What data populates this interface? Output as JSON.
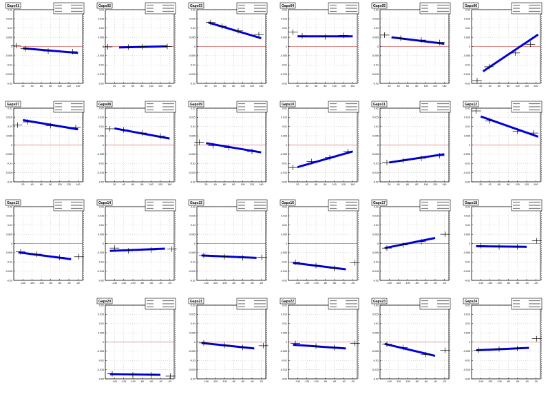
{
  "chart_data": [
    {
      "title": "Gaps01",
      "type": "scatter",
      "x_ticks": [
        "20",
        "40",
        "60",
        "80",
        "100",
        "120",
        "140"
      ],
      "y_ticks": [
        "0.02",
        "0.015",
        "0.01",
        "0.005",
        "0",
        "-0.005",
        "-0.01",
        "-0.015",
        "-0.02"
      ],
      "ylim": [
        -0.02,
        0.02
      ],
      "fit": {
        "x": [
          20,
          140
        ],
        "y": [
          -0.001,
          -0.0035
        ]
      },
      "points": [
        {
          "x": 5,
          "y": 0.0005
        },
        {
          "x": 25,
          "y": -0.0012
        },
        {
          "x": 75,
          "y": -0.0025
        },
        {
          "x": 128,
          "y": -0.0028
        }
      ]
    },
    {
      "title": "Gaps02",
      "type": "scatter",
      "x_ticks": [
        "20",
        "40",
        "60",
        "80",
        "100",
        "120",
        "140"
      ],
      "y_ticks": [
        "0.02",
        "0.015",
        "0.01",
        "0.005",
        "0",
        "-0.005",
        "-0.01",
        "-0.015",
        "-0.02"
      ],
      "ylim": [
        -0.02,
        0.02
      ],
      "fit": {
        "x": [
          30,
          135
        ],
        "y": [
          -0.0005,
          0.0001
        ]
      },
      "points": [
        {
          "x": 5,
          "y": -0.0002
        },
        {
          "x": 50,
          "y": -0.0003
        },
        {
          "x": 80,
          "y": -0.0001
        },
        {
          "x": 135,
          "y": 0.0
        }
      ]
    },
    {
      "title": "Gaps03",
      "type": "scatter",
      "x_ticks": [
        "20",
        "40",
        "60",
        "80",
        "100",
        "120",
        "140"
      ],
      "y_ticks": [
        "0.02",
        "0.015",
        "0.01",
        "0.005",
        "0",
        "-0.005",
        "-0.01",
        "-0.015",
        "-0.02"
      ],
      "ylim": [
        -0.02,
        0.02
      ],
      "fit": {
        "x": [
          25,
          140
        ],
        "y": [
          0.013,
          0.0045
        ]
      },
      "points": [
        {
          "x": 30,
          "y": 0.013
        },
        {
          "x": 55,
          "y": 0.011
        },
        {
          "x": 90,
          "y": 0.0085
        },
        {
          "x": 135,
          "y": 0.0065
        }
      ]
    },
    {
      "title": "Gaps04",
      "type": "scatter",
      "x_ticks": [
        "20",
        "40",
        "60",
        "80",
        "100",
        "120",
        "140"
      ],
      "y_ticks": [
        "0.02",
        "0.015",
        "0.01",
        "0.005",
        "0",
        "-0.005",
        "-0.01",
        "-0.015",
        "-0.02"
      ],
      "ylim": [
        -0.02,
        0.02
      ],
      "fit": {
        "x": [
          20,
          140
        ],
        "y": [
          0.0055,
          0.0055
        ]
      },
      "points": [
        {
          "x": 10,
          "y": 0.0078
        },
        {
          "x": 30,
          "y": 0.0058
        },
        {
          "x": 80,
          "y": 0.0052
        },
        {
          "x": 120,
          "y": 0.006
        }
      ]
    },
    {
      "title": "Gaps05",
      "type": "scatter",
      "x_ticks": [
        "20",
        "40",
        "60",
        "80",
        "100",
        "120",
        "140"
      ],
      "y_ticks": [
        "0.02",
        "0.015",
        "0.01",
        "0.005",
        "0",
        "-0.005",
        "-0.01",
        "-0.015",
        "-0.02"
      ],
      "ylim": [
        -0.02,
        0.02
      ],
      "fit": {
        "x": [
          25,
          140
        ],
        "y": [
          0.005,
          0.0015
        ]
      },
      "points": [
        {
          "x": 10,
          "y": 0.0062
        },
        {
          "x": 45,
          "y": 0.0045
        },
        {
          "x": 90,
          "y": 0.0035
        },
        {
          "x": 130,
          "y": 0.0022
        }
      ]
    },
    {
      "title": "Gaps06",
      "type": "scatter",
      "x_ticks": [
        "20",
        "40",
        "60",
        "80",
        "100",
        "120",
        "140"
      ],
      "y_ticks": [
        "0.02",
        "0.015",
        "0.01",
        "0.005",
        "0",
        "-0.005",
        "-0.01",
        "-0.015",
        "-0.02"
      ],
      "ylim": [
        -0.02,
        0.02
      ],
      "fit": {
        "x": [
          25,
          145
        ],
        "y": [
          -0.0135,
          0.0065
        ]
      },
      "points": [
        {
          "x": 12,
          "y": -0.0185
        },
        {
          "x": 38,
          "y": -0.011
        },
        {
          "x": 95,
          "y": -0.0035
        },
        {
          "x": 128,
          "y": 0.0012
        }
      ]
    },
    {
      "title": "Gaps07",
      "type": "scatter",
      "x_ticks": [
        "20",
        "40",
        "60",
        "80",
        "100",
        "120",
        "140"
      ],
      "y_ticks": [
        "0.02",
        "0.015",
        "0.01",
        "0.005",
        "0",
        "-0.005",
        "-0.01",
        "-0.015",
        "-0.02"
      ],
      "ylim": [
        -0.02,
        0.02
      ],
      "fit": {
        "x": [
          20,
          140
        ],
        "y": [
          0.0135,
          0.0085
        ]
      },
      "points": [
        {
          "x": 8,
          "y": 0.0108
        },
        {
          "x": 30,
          "y": 0.0125
        },
        {
          "x": 80,
          "y": 0.0105
        },
        {
          "x": 135,
          "y": 0.0095
        }
      ]
    },
    {
      "title": "Gaps08",
      "type": "scatter",
      "x_ticks": [
        "20",
        "40",
        "60",
        "80",
        "100",
        "120",
        "140"
      ],
      "y_ticks": [
        "0.02",
        "0.015",
        "0.01",
        "0.005",
        "0",
        "-0.005",
        "-0.01",
        "-0.015",
        "-0.02"
      ],
      "ylim": [
        -0.02,
        0.02
      ],
      "fit": {
        "x": [
          20,
          140
        ],
        "y": [
          0.009,
          0.0035
        ]
      },
      "points": [
        {
          "x": 10,
          "y": 0.0088
        },
        {
          "x": 40,
          "y": 0.0082
        },
        {
          "x": 80,
          "y": 0.0065
        },
        {
          "x": 120,
          "y": 0.0048
        }
      ]
    },
    {
      "title": "Gaps09",
      "type": "scatter",
      "x_ticks": [
        "20",
        "40",
        "60",
        "80",
        "100",
        "120",
        "140"
      ],
      "y_ticks": [
        "0.02",
        "0.015",
        "0.01",
        "0.005",
        "0",
        "-0.005",
        "-0.01",
        "-0.015",
        "-0.02"
      ],
      "ylim": [
        -0.02,
        0.02
      ],
      "fit": {
        "x": [
          20,
          140
        ],
        "y": [
          0.001,
          -0.004
        ]
      },
      "points": [
        {
          "x": 5,
          "y": 0.0015
        },
        {
          "x": 35,
          "y": -0.0003
        },
        {
          "x": 70,
          "y": -0.0015
        },
        {
          "x": 120,
          "y": -0.0035
        }
      ]
    },
    {
      "title": "Gaps10",
      "type": "scatter",
      "x_ticks": [
        "20",
        "40",
        "60",
        "80",
        "100",
        "120",
        "140"
      ],
      "y_ticks": [
        "0.02",
        "0.015",
        "0.01",
        "0.005",
        "0",
        "-0.005",
        "-0.01",
        "-0.015",
        "-0.02"
      ],
      "ylim": [
        -0.02,
        0.02
      ],
      "fit": {
        "x": [
          20,
          140
        ],
        "y": [
          -0.012,
          -0.0035
        ]
      },
      "points": [
        {
          "x": 10,
          "y": -0.0122
        },
        {
          "x": 50,
          "y": -0.009
        },
        {
          "x": 90,
          "y": -0.0068
        },
        {
          "x": 130,
          "y": -0.0035
        }
      ]
    },
    {
      "title": "Gaps11",
      "type": "scatter",
      "x_ticks": [
        "20",
        "40",
        "60",
        "80",
        "100",
        "120",
        "140"
      ],
      "y_ticks": [
        "0.02",
        "0.015",
        "0.01",
        "0.005",
        "0",
        "-0.005",
        "-0.01",
        "-0.015",
        "-0.02"
      ],
      "ylim": [
        -0.02,
        0.02
      ],
      "fit": {
        "x": [
          20,
          140
        ],
        "y": [
          -0.0095,
          -0.005
        ]
      },
      "points": [
        {
          "x": 15,
          "y": -0.0095
        },
        {
          "x": 50,
          "y": -0.0085
        },
        {
          "x": 90,
          "y": -0.0072
        },
        {
          "x": 130,
          "y": -0.0058
        }
      ]
    },
    {
      "title": "Gaps12",
      "type": "scatter",
      "x_ticks": [
        "20",
        "40",
        "60",
        "80",
        "100",
        "120",
        "140"
      ],
      "y_ticks": [
        "0.02",
        "0.015",
        "0.01",
        "0.005",
        "0",
        "-0.005",
        "-0.01",
        "-0.015",
        "-0.02"
      ],
      "ylim": [
        -0.02,
        0.02
      ],
      "fit": {
        "x": [
          20,
          145
        ],
        "y": [
          0.0155,
          0.0045
        ]
      },
      "points": [
        {
          "x": 10,
          "y": 0.0185
        },
        {
          "x": 40,
          "y": 0.013
        },
        {
          "x": 100,
          "y": 0.0075
        },
        {
          "x": 135,
          "y": 0.0065
        }
      ]
    },
    {
      "title": "Gaps13",
      "type": "scatter",
      "x_ticks": [
        "-140",
        "-120",
        "-100",
        "-80",
        "-60",
        "-40",
        "-20"
      ],
      "y_ticks": [
        "0.02",
        "0.015",
        "0.01",
        "0.005",
        "0",
        "-0.005",
        "-0.01",
        "-0.015",
        "-0.02"
      ],
      "ylim": [
        -0.02,
        0.02
      ],
      "fit": {
        "x": [
          -150,
          -35
        ],
        "y": [
          -0.0048,
          -0.0085
        ]
      },
      "points": [
        {
          "x": -145,
          "y": -0.0045
        },
        {
          "x": -110,
          "y": -0.0058
        },
        {
          "x": -60,
          "y": -0.0075
        },
        {
          "x": -18,
          "y": -0.0072
        }
      ]
    },
    {
      "title": "Gaps14",
      "type": "scatter",
      "x_ticks": [
        "-140",
        "-120",
        "-100",
        "-80",
        "-60",
        "-40",
        "-20"
      ],
      "y_ticks": [
        "0.02",
        "0.015",
        "0.01",
        "0.005",
        "0",
        "-0.005",
        "-0.01",
        "-0.015",
        "-0.02"
      ],
      "ylim": [
        -0.02,
        0.02
      ],
      "fit": {
        "x": [
          -150,
          -30
        ],
        "y": [
          -0.004,
          -0.0028
        ]
      },
      "points": [
        {
          "x": -140,
          "y": -0.0025
        },
        {
          "x": -110,
          "y": -0.004
        },
        {
          "x": -60,
          "y": -0.0035
        },
        {
          "x": -15,
          "y": -0.003
        }
      ]
    },
    {
      "title": "Gaps15",
      "type": "scatter",
      "x_ticks": [
        "-140",
        "-120",
        "-100",
        "-80",
        "-60",
        "-40",
        "-20"
      ],
      "y_ticks": [
        "0.02",
        "0.015",
        "0.01",
        "0.005",
        "0",
        "-0.005",
        "-0.01",
        "-0.015",
        "-0.02"
      ],
      "ylim": [
        -0.02,
        0.02
      ],
      "fit": {
        "x": [
          -150,
          -30
        ],
        "y": [
          -0.0065,
          -0.0078
        ]
      },
      "points": [
        {
          "x": -145,
          "y": -0.0065
        },
        {
          "x": -100,
          "y": -0.0072
        },
        {
          "x": -60,
          "y": -0.0078
        },
        {
          "x": -18,
          "y": -0.0075
        }
      ]
    },
    {
      "title": "Gaps16",
      "type": "scatter",
      "x_ticks": [
        "-140",
        "-120",
        "-100",
        "-80",
        "-60",
        "-40",
        "-20"
      ],
      "y_ticks": [
        "0.02",
        "0.015",
        "0.01",
        "0.005",
        "0",
        "-0.005",
        "-0.01",
        "-0.015",
        "-0.02"
      ],
      "ylim": [
        -0.02,
        0.02
      ],
      "fit": {
        "x": [
          -150,
          -35
        ],
        "y": [
          -0.0105,
          -0.014
        ]
      },
      "points": [
        {
          "x": -145,
          "y": -0.0102
        },
        {
          "x": -100,
          "y": -0.012
        },
        {
          "x": -60,
          "y": -0.0135
        },
        {
          "x": -15,
          "y": -0.0105
        }
      ]
    },
    {
      "title": "Gaps17",
      "type": "scatter",
      "x_ticks": [
        "-140",
        "-120",
        "-100",
        "-80",
        "-60",
        "-40",
        "-20"
      ],
      "y_ticks": [
        "0.02",
        "0.015",
        "0.01",
        "0.005",
        "0",
        "-0.005",
        "-0.01",
        "-0.015",
        "-0.02"
      ],
      "ylim": [
        -0.02,
        0.02
      ],
      "fit": {
        "x": [
          -150,
          -40
        ],
        "y": [
          -0.0025,
          0.003
        ]
      },
      "points": [
        {
          "x": -145,
          "y": -0.0025
        },
        {
          "x": -110,
          "y": -0.0008
        },
        {
          "x": -70,
          "y": 0.001
        },
        {
          "x": -18,
          "y": 0.005
        }
      ]
    },
    {
      "title": "Gaps18",
      "type": "scatter",
      "x_ticks": [
        "-140",
        "-120",
        "-100",
        "-80",
        "-60",
        "-40",
        "-20"
      ],
      "y_ticks": [
        "0.02",
        "0.015",
        "0.01",
        "0.005",
        "0",
        "-0.005",
        "-0.01",
        "-0.015",
        "-0.02"
      ],
      "ylim": [
        -0.02,
        0.02
      ],
      "fit": {
        "x": [
          -150,
          -40
        ],
        "y": [
          -0.0015,
          -0.0018
        ]
      },
      "points": [
        {
          "x": -140,
          "y": -0.0012
        },
        {
          "x": -100,
          "y": -0.0018
        },
        {
          "x": -60,
          "y": -0.0018
        },
        {
          "x": -18,
          "y": 0.0015
        }
      ]
    },
    {
      "title": "Gaps20",
      "type": "scatter",
      "x_ticks": [
        "-140",
        "-120",
        "-100",
        "-80",
        "-60",
        "-40",
        "-20"
      ],
      "y_ticks": [
        "0.02",
        "0.015",
        "0.01",
        "0.005",
        "0",
        "-0.005",
        "-0.01",
        "-0.015",
        "-0.02"
      ],
      "ylim": [
        -0.02,
        0.02
      ],
      "fit": {
        "x": [
          -150,
          -40
        ],
        "y": [
          -0.0175,
          -0.0178
        ]
      },
      "points": [
        {
          "x": -145,
          "y": -0.0172
        },
        {
          "x": -100,
          "y": -0.0178
        },
        {
          "x": -60,
          "y": -0.0178
        },
        {
          "x": -18,
          "y": -0.0185
        }
      ]
    },
    {
      "title": "Gaps21",
      "type": "scatter",
      "x_ticks": [
        "-140",
        "-120",
        "-100",
        "-80",
        "-60",
        "-40",
        "-20"
      ],
      "y_ticks": [
        "0.02",
        "0.015",
        "0.01",
        "0.005",
        "0",
        "-0.005",
        "-0.01",
        "-0.015",
        "-0.02"
      ],
      "ylim": [
        -0.02,
        0.02
      ],
      "fit": {
        "x": [
          -150,
          -35
        ],
        "y": [
          -0.0005,
          -0.0035
        ]
      },
      "points": [
        {
          "x": -145,
          "y": -0.0005
        },
        {
          "x": -100,
          "y": -0.0018
        },
        {
          "x": -60,
          "y": -0.003
        },
        {
          "x": -15,
          "y": -0.002
        }
      ]
    },
    {
      "title": "Gaps22",
      "type": "scatter",
      "x_ticks": [
        "-140",
        "-120",
        "-100",
        "-80",
        "-60",
        "-40",
        "-20"
      ],
      "y_ticks": [
        "0.02",
        "0.015",
        "0.01",
        "0.005",
        "0",
        "-0.005",
        "-0.01",
        "-0.015",
        "-0.02"
      ],
      "ylim": [
        -0.02,
        0.02
      ],
      "fit": {
        "x": [
          -150,
          -35
        ],
        "y": [
          -0.0015,
          -0.0035
        ]
      },
      "points": [
        {
          "x": -145,
          "y": -0.0008
        },
        {
          "x": -100,
          "y": -0.0022
        },
        {
          "x": -60,
          "y": -0.003
        },
        {
          "x": -15,
          "y": -0.0008
        }
      ]
    },
    {
      "title": "Gaps23",
      "type": "scatter",
      "x_ticks": [
        "-140",
        "-120",
        "-100",
        "-80",
        "-60",
        "-40",
        "-20"
      ],
      "y_ticks": [
        "0.02",
        "0.015",
        "0.01",
        "0.005",
        "0",
        "-0.005",
        "-0.01",
        "-0.015",
        "-0.02"
      ],
      "ylim": [
        -0.02,
        0.02
      ],
      "fit": {
        "x": [
          -150,
          -40
        ],
        "y": [
          -0.001,
          -0.0075
        ]
      },
      "points": [
        {
          "x": -145,
          "y": -0.0012
        },
        {
          "x": -110,
          "y": -0.003
        },
        {
          "x": -60,
          "y": -0.0068
        },
        {
          "x": -18,
          "y": -0.0045
        }
      ]
    },
    {
      "title": "Gaps24",
      "type": "scatter",
      "x_ticks": [
        "-140",
        "-120",
        "-100",
        "-80",
        "-60",
        "-40",
        "-20"
      ],
      "y_ticks": [
        "0.02",
        "0.015",
        "0.01",
        "0.005",
        "0",
        "-0.005",
        "-0.01",
        "-0.015",
        "-0.02"
      ],
      "ylim": [
        -0.02,
        0.02
      ],
      "fit": {
        "x": [
          -150,
          -35
        ],
        "y": [
          -0.0045,
          -0.0032
        ]
      },
      "points": [
        {
          "x": -145,
          "y": -0.0045
        },
        {
          "x": -100,
          "y": -0.0038
        },
        {
          "x": -60,
          "y": -0.0035
        },
        {
          "x": -18,
          "y": 0.0018
        }
      ]
    }
  ],
  "colors": {
    "fit": "#0000dd",
    "zero_line": "#cc3333",
    "frame": "#000000",
    "grid": "#bbbbbb",
    "points": "#000000"
  }
}
